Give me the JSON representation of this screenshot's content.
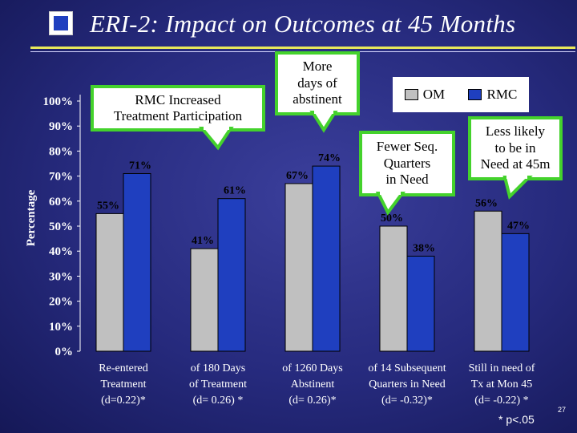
{
  "header": {
    "title": "ERI-2:  Impact on Outcomes at 45 Months"
  },
  "chart_data": {
    "type": "bar",
    "ylabel": "Percentage",
    "ylim": [
      0,
      100
    ],
    "yticks": [
      0,
      10,
      20,
      30,
      40,
      50,
      60,
      70,
      80,
      90,
      100
    ],
    "ytick_labels": [
      "0%",
      "10%",
      "20%",
      "30%",
      "40%",
      "50%",
      "60%",
      "70%",
      "80%",
      "90%",
      "100%"
    ],
    "categories": [
      [
        "Re-entered",
        "Treatment",
        "(d=0.22)*"
      ],
      [
        "of 180 Days",
        "of Treatment",
        "(d= 0.26) *"
      ],
      [
        "of 1260 Days",
        "Abstinent",
        "(d= 0.26)*"
      ],
      [
        "of 14 Subsequent",
        "Quarters in Need",
        "(d= -0.32)*"
      ],
      [
        "Still in need of",
        "Tx at Mon 45",
        "(d= -0.22) *"
      ]
    ],
    "series": [
      {
        "name": "OM",
        "color": "#c0c0c0",
        "values": [
          55,
          41,
          67,
          50,
          56
        ],
        "labels": [
          "55%",
          "41%",
          "67%",
          "50%",
          "56%"
        ]
      },
      {
        "name": "RMC",
        "color": "#1f3fbf",
        "values": [
          71,
          61,
          74,
          38,
          47
        ],
        "labels": [
          "71%",
          "61%",
          "74%",
          "38%",
          "47%"
        ]
      }
    ],
    "legend": "top-right",
    "annotations": [
      {
        "text": [
          "RMC Increased",
          "Treatment Participation"
        ]
      },
      {
        "text": [
          "More",
          "days of",
          "abstinent"
        ]
      },
      {
        "text": [
          "Fewer Seq.",
          "Quarters",
          "in Need"
        ]
      },
      {
        "text": [
          "Less likely",
          "to be in",
          "Need at 45m"
        ]
      }
    ],
    "footnote": "* p<.05"
  },
  "page_number": "27"
}
